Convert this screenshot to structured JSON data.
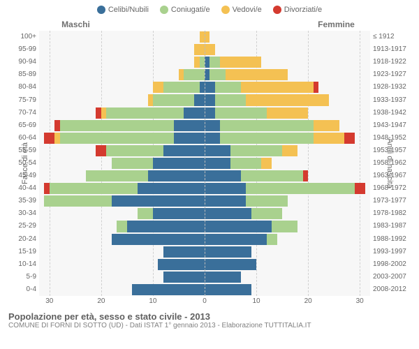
{
  "legend": [
    {
      "label": "Celibi/Nubili",
      "color": "#3a6f9a"
    },
    {
      "label": "Coniugati/e",
      "color": "#a9d18e"
    },
    {
      "label": "Vedovi/e",
      "color": "#f4c153"
    },
    {
      "label": "Divorziati/e",
      "color": "#d43a2f"
    }
  ],
  "gender": {
    "male": "Maschi",
    "female": "Femmine"
  },
  "axis": {
    "left_title": "Fasce di età",
    "right_title": "Anni di nascita",
    "xmax": 32,
    "xticks": [
      0,
      10,
      20,
      30
    ]
  },
  "rows": [
    {
      "age": "100+",
      "birth": "≤ 1912",
      "m": {
        "c": 0,
        "co": 0,
        "v": 1,
        "d": 0
      },
      "f": {
        "c": 0,
        "co": 0,
        "v": 1,
        "d": 0
      }
    },
    {
      "age": "95-99",
      "birth": "1913-1917",
      "m": {
        "c": 0,
        "co": 0,
        "v": 2,
        "d": 0
      },
      "f": {
        "c": 0,
        "co": 0,
        "v": 2,
        "d": 0
      }
    },
    {
      "age": "90-94",
      "birth": "1918-1922",
      "m": {
        "c": 0,
        "co": 1,
        "v": 1,
        "d": 0
      },
      "f": {
        "c": 1,
        "co": 2,
        "v": 8,
        "d": 0
      }
    },
    {
      "age": "85-89",
      "birth": "1923-1927",
      "m": {
        "c": 0,
        "co": 4,
        "v": 1,
        "d": 0
      },
      "f": {
        "c": 1,
        "co": 3,
        "v": 12,
        "d": 0
      }
    },
    {
      "age": "80-84",
      "birth": "1928-1932",
      "m": {
        "c": 1,
        "co": 7,
        "v": 2,
        "d": 0
      },
      "f": {
        "c": 2,
        "co": 5,
        "v": 14,
        "d": 1
      }
    },
    {
      "age": "75-79",
      "birth": "1933-1937",
      "m": {
        "c": 2,
        "co": 8,
        "v": 1,
        "d": 0
      },
      "f": {
        "c": 2,
        "co": 6,
        "v": 16,
        "d": 0
      }
    },
    {
      "age": "70-74",
      "birth": "1938-1942",
      "m": {
        "c": 4,
        "co": 15,
        "v": 1,
        "d": 1
      },
      "f": {
        "c": 2,
        "co": 10,
        "v": 8,
        "d": 0
      }
    },
    {
      "age": "65-69",
      "birth": "1943-1947",
      "m": {
        "c": 6,
        "co": 22,
        "v": 0,
        "d": 1
      },
      "f": {
        "c": 3,
        "co": 18,
        "v": 5,
        "d": 0
      }
    },
    {
      "age": "60-64",
      "birth": "1948-1952",
      "m": {
        "c": 6,
        "co": 22,
        "v": 1,
        "d": 2
      },
      "f": {
        "c": 3,
        "co": 18,
        "v": 6,
        "d": 2
      }
    },
    {
      "age": "55-59",
      "birth": "1953-1957",
      "m": {
        "c": 8,
        "co": 11,
        "v": 0,
        "d": 2
      },
      "f": {
        "c": 5,
        "co": 10,
        "v": 3,
        "d": 0
      }
    },
    {
      "age": "50-54",
      "birth": "1958-1962",
      "m": {
        "c": 10,
        "co": 8,
        "v": 0,
        "d": 0
      },
      "f": {
        "c": 5,
        "co": 6,
        "v": 2,
        "d": 0
      }
    },
    {
      "age": "45-49",
      "birth": "1963-1967",
      "m": {
        "c": 11,
        "co": 12,
        "v": 0,
        "d": 0
      },
      "f": {
        "c": 7,
        "co": 12,
        "v": 0,
        "d": 1
      }
    },
    {
      "age": "40-44",
      "birth": "1968-1972",
      "m": {
        "c": 13,
        "co": 17,
        "v": 0,
        "d": 1
      },
      "f": {
        "c": 8,
        "co": 21,
        "v": 0,
        "d": 2
      }
    },
    {
      "age": "35-39",
      "birth": "1973-1977",
      "m": {
        "c": 18,
        "co": 13,
        "v": 0,
        "d": 0
      },
      "f": {
        "c": 8,
        "co": 8,
        "v": 0,
        "d": 0
      }
    },
    {
      "age": "30-34",
      "birth": "1978-1982",
      "m": {
        "c": 10,
        "co": 3,
        "v": 0,
        "d": 0
      },
      "f": {
        "c": 9,
        "co": 6,
        "v": 0,
        "d": 0
      }
    },
    {
      "age": "25-29",
      "birth": "1983-1987",
      "m": {
        "c": 15,
        "co": 2,
        "v": 0,
        "d": 0
      },
      "f": {
        "c": 13,
        "co": 5,
        "v": 0,
        "d": 0
      }
    },
    {
      "age": "20-24",
      "birth": "1988-1992",
      "m": {
        "c": 18,
        "co": 0,
        "v": 0,
        "d": 0
      },
      "f": {
        "c": 12,
        "co": 2,
        "v": 0,
        "d": 0
      }
    },
    {
      "age": "15-19",
      "birth": "1993-1997",
      "m": {
        "c": 8,
        "co": 0,
        "v": 0,
        "d": 0
      },
      "f": {
        "c": 9,
        "co": 0,
        "v": 0,
        "d": 0
      }
    },
    {
      "age": "10-14",
      "birth": "1998-2002",
      "m": {
        "c": 9,
        "co": 0,
        "v": 0,
        "d": 0
      },
      "f": {
        "c": 10,
        "co": 0,
        "v": 0,
        "d": 0
      }
    },
    {
      "age": "5-9",
      "birth": "2003-2007",
      "m": {
        "c": 8,
        "co": 0,
        "v": 0,
        "d": 0
      },
      "f": {
        "c": 7,
        "co": 0,
        "v": 0,
        "d": 0
      }
    },
    {
      "age": "0-4",
      "birth": "2008-2012",
      "m": {
        "c": 14,
        "co": 0,
        "v": 0,
        "d": 0
      },
      "f": {
        "c": 9,
        "co": 0,
        "v": 0,
        "d": 0
      }
    }
  ],
  "footer": {
    "title": "Popolazione per età, sesso e stato civile - 2013",
    "sub": "COMUNE DI FORNI DI SOTTO (UD) - Dati ISTAT 1° gennaio 2013 - Elaborazione TUTTITALIA.IT"
  },
  "colors": {
    "background": "#f7f7f7",
    "grid": "#d0d0d0",
    "text": "#666666"
  }
}
